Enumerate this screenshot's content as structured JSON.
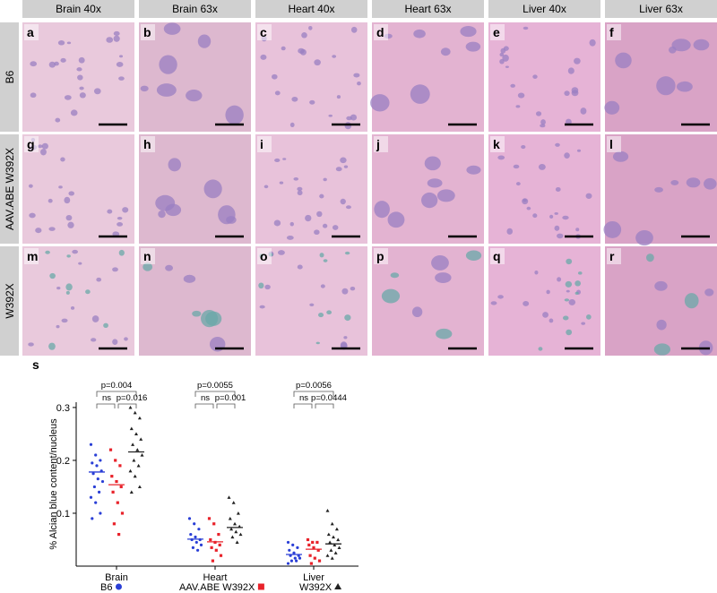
{
  "figure": {
    "columns": [
      "Brain 40x",
      "Brain 63x",
      "Heart 40x",
      "Heart 63x",
      "Liver 40x",
      "Liver 63x"
    ],
    "rows": [
      "B6",
      "AAV.ABE W392X",
      "W392X"
    ],
    "panels": [
      [
        "a",
        "b",
        "c",
        "d",
        "e",
        "f"
      ],
      [
        "g",
        "h",
        "i",
        "j",
        "k",
        "l"
      ],
      [
        "m",
        "n",
        "o",
        "p",
        "q",
        "r"
      ]
    ]
  },
  "chart_data": {
    "type": "strip",
    "label": "s",
    "y_label": "% Alcian blue content/nucleus",
    "categories": [
      "Brain",
      "Heart",
      "Liver"
    ],
    "ylim": [
      0,
      0.31
    ],
    "yticks": [
      0.1,
      0.2,
      0.3
    ],
    "series": [
      {
        "name": "B6",
        "color": "#2a3fd6",
        "marker": "circle",
        "values": [
          [
            0.23,
            0.21,
            0.2,
            0.195,
            0.19,
            0.18,
            0.175,
            0.165,
            0.16,
            0.15,
            0.14,
            0.13,
            0.12,
            0.1,
            0.09
          ],
          [
            0.09,
            0.08,
            0.07,
            0.06,
            0.055,
            0.05,
            0.05,
            0.045,
            0.04,
            0.035,
            0.03
          ],
          [
            0.045,
            0.04,
            0.035,
            0.03,
            0.025,
            0.02,
            0.02,
            0.015,
            0.015,
            0.01,
            0.01,
            0.005
          ]
        ],
        "medians": [
          0.178,
          0.051,
          0.022
        ]
      },
      {
        "name": "AAV.ABE W392X",
        "color": "#e8222a",
        "marker": "square",
        "values": [
          [
            0.22,
            0.2,
            0.19,
            0.17,
            0.16,
            0.15,
            0.14,
            0.12,
            0.1,
            0.08,
            0.06
          ],
          [
            0.09,
            0.08,
            0.06,
            0.05,
            0.045,
            0.04,
            0.035,
            0.03,
            0.02,
            0.01
          ],
          [
            0.05,
            0.045,
            0.045,
            0.04,
            0.035,
            0.03,
            0.02,
            0.015,
            0.01,
            0.005
          ]
        ],
        "medians": [
          0.154,
          0.046,
          0.032
        ]
      },
      {
        "name": "W392X",
        "color": "#222222",
        "marker": "triangle",
        "values": [
          [
            0.3,
            0.29,
            0.28,
            0.26,
            0.25,
            0.24,
            0.23,
            0.22,
            0.21,
            0.2,
            0.19,
            0.18,
            0.17,
            0.15,
            0.14
          ],
          [
            0.13,
            0.12,
            0.1,
            0.09,
            0.08,
            0.075,
            0.07,
            0.065,
            0.06,
            0.055,
            0.045
          ],
          [
            0.105,
            0.08,
            0.07,
            0.06,
            0.055,
            0.05,
            0.045,
            0.04,
            0.035,
            0.03,
            0.025,
            0.02,
            0.015
          ]
        ],
        "medians": [
          0.216,
          0.073,
          0.042
        ]
      }
    ],
    "annotations": [
      {
        "top": "p=0.004",
        "left": "ns",
        "right": "p=0.016"
      },
      {
        "top": "p=0.0055",
        "left": "ns",
        "right": "p=0.001"
      },
      {
        "top": "p=0.0056",
        "left": "ns",
        "right": "p=0.0444"
      }
    ]
  }
}
